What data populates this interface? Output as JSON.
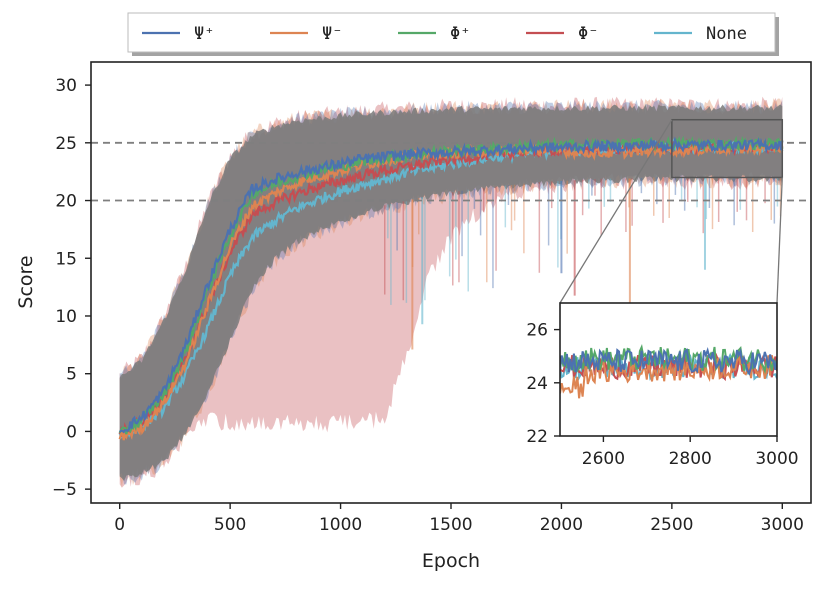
{
  "chart_data": {
    "type": "line",
    "xlabel": "Epoch",
    "ylabel": "Score",
    "xlim": [
      -130,
      3130
    ],
    "ylim": [
      -6.2,
      32
    ],
    "xticks": [
      0,
      500,
      1000,
      1500,
      2000,
      2500,
      3000
    ],
    "yticks": [
      -5,
      0,
      5,
      10,
      15,
      20,
      25,
      30
    ],
    "xtick_labels": [
      "0",
      "500",
      "1000",
      "1500",
      "2000",
      "2500",
      "3000"
    ],
    "ytick_labels": [
      "−5",
      "0",
      "5",
      "10",
      "15",
      "20",
      "25",
      "30"
    ],
    "reference_lines": [
      20,
      25
    ],
    "legend_position": "top-center",
    "series": [
      {
        "name": "Ψ⁺",
        "color": "#4c72b0",
        "values": [
          0.0,
          1.2,
          3.5,
          7.5,
          12.8,
          17.5,
          21.0,
          21.8,
          22.4,
          22.8,
          23.2,
          23.6,
          23.8,
          24.0,
          24.1,
          24.2,
          24.3,
          24.4,
          24.5,
          24.6,
          24.6,
          24.7,
          24.7,
          24.7,
          24.8,
          24.8,
          24.8,
          24.8,
          24.8,
          24.8,
          24.8
        ]
      },
      {
        "name": "Ψ⁻",
        "color": "#dd8452",
        "values": [
          -0.5,
          0.3,
          2.5,
          6.0,
          11.0,
          16.0,
          19.5,
          20.6,
          21.5,
          22.1,
          22.6,
          23.1,
          23.5,
          23.8,
          24.0,
          24.1,
          24.2,
          24.3,
          24.4,
          24.4,
          24.3,
          24.2,
          24.1,
          24.2,
          24.3,
          24.4,
          24.4,
          24.5,
          24.5,
          24.6,
          24.6
        ]
      },
      {
        "name": "Φ⁺",
        "color": "#55a868",
        "values": [
          -0.3,
          1.0,
          3.2,
          7.0,
          12.3,
          17.0,
          20.6,
          21.4,
          22.1,
          22.6,
          23.0,
          23.4,
          23.7,
          23.9,
          24.1,
          24.3,
          24.4,
          24.5,
          24.6,
          24.7,
          24.8,
          24.8,
          24.9,
          24.9,
          24.9,
          24.9,
          24.9,
          24.9,
          24.9,
          24.9,
          24.9
        ]
      },
      {
        "name": "Φ⁻",
        "color": "#c44e52",
        "values": [
          -0.2,
          0.8,
          2.8,
          6.3,
          11.0,
          15.5,
          18.8,
          19.8,
          20.6,
          21.2,
          21.7,
          22.2,
          22.6,
          22.9,
          23.3,
          23.6,
          23.8,
          24.0,
          24.2,
          24.3,
          24.4,
          24.4,
          24.5,
          24.5,
          24.6,
          24.6,
          24.6,
          24.6,
          24.6,
          24.6,
          24.6
        ]
      },
      {
        "name": "None",
        "color": "#64b5cd",
        "values": [
          -0.4,
          0.5,
          2.0,
          5.0,
          9.0,
          13.5,
          16.8,
          18.2,
          19.3,
          20.1,
          20.8,
          21.4,
          21.9,
          22.4,
          22.8,
          23.2,
          23.5,
          23.8,
          24.0,
          24.2,
          24.3,
          24.4,
          24.5,
          24.5,
          24.6,
          24.6,
          24.6,
          24.6,
          24.6,
          24.6,
          24.6
        ]
      }
    ],
    "x_step": 100,
    "band_upper": [
      4.5,
      6.0,
      9.5,
      14.0,
      19.5,
      23.5,
      25.5,
      26.3,
      26.8,
      27.0,
      27.2,
      27.4,
      27.5,
      27.6,
      27.7,
      27.8,
      27.8,
      27.8,
      27.9,
      27.9,
      27.9,
      27.9,
      27.9,
      27.9,
      27.9,
      27.9,
      27.9,
      27.9,
      27.9,
      27.9,
      27.9
    ],
    "band_lower": [
      -4.0,
      -3.5,
      -2.5,
      0.0,
      3.5,
      8.0,
      12.5,
      15.0,
      16.5,
      17.5,
      18.3,
      19.0,
      19.6,
      20.0,
      20.4,
      20.7,
      21.0,
      21.2,
      21.4,
      21.6,
      21.7,
      21.8,
      21.9,
      21.9,
      22.0,
      22.0,
      22.0,
      22.0,
      22.0,
      22.0,
      22.0
    ],
    "red_band_lower": [
      -4.0,
      -3.5,
      -2.5,
      0.0,
      1.5,
      1.0,
      1.0,
      1.0,
      1.0,
      1.0,
      1.0,
      1.0,
      1.5,
      7.0,
      14.0,
      17.0,
      19.0,
      20.5,
      21.0,
      21.5,
      21.7,
      21.8,
      21.9,
      21.9,
      22.0,
      22.0,
      22.0,
      22.0,
      22.0,
      22.0,
      22.0
    ],
    "inset": {
      "xlim": [
        2500,
        3000
      ],
      "ylim": [
        22,
        27
      ],
      "xticks": [
        2600,
        2800,
        3000
      ],
      "yticks": [
        22,
        24,
        26
      ],
      "xtick_labels": [
        "2600",
        "2800",
        "3000"
      ],
      "ytick_labels": [
        "22",
        "24",
        "26"
      ],
      "zoom_region": {
        "x": [
          2500,
          3000
        ],
        "y": [
          22,
          27
        ]
      }
    }
  }
}
